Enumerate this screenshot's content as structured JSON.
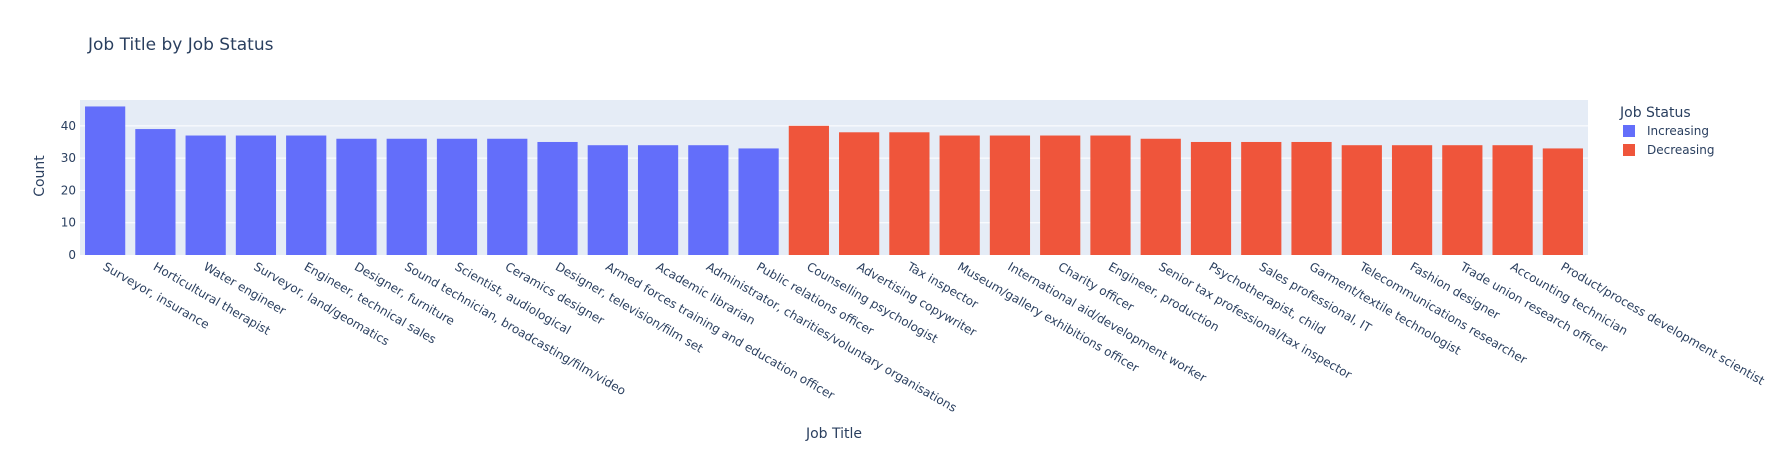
{
  "chart_data": {
    "type": "bar",
    "title": "Job Title by Job Status",
    "xlabel": "Job Title",
    "ylabel": "Count",
    "ylim": [
      0,
      48
    ],
    "yticks": [
      0,
      10,
      20,
      30,
      40
    ],
    "grid": true,
    "legend": {
      "title": "Job Status",
      "position": "top-right",
      "items": [
        {
          "name": "Increasing",
          "color": "#636efa"
        },
        {
          "name": "Decreasing",
          "color": "#ef553b"
        }
      ]
    },
    "series": [
      {
        "name": "Increasing",
        "color": "#636efa",
        "categories": [
          "Surveyor, insurance",
          "Horticultural therapist",
          "Water engineer",
          "Surveyor, land/geomatics",
          "Engineer, technical sales",
          "Designer, furniture",
          "Sound technician, broadcasting/film/video",
          "Scientist, audiological",
          "Ceramics designer",
          "Designer, television/film set",
          "Armed forces training and education officer",
          "Academic librarian",
          "Administrator, charities/voluntary organisations",
          "Public relations officer"
        ],
        "values": [
          46,
          39,
          37,
          37,
          37,
          36,
          36,
          36,
          36,
          35,
          34,
          34,
          34,
          33
        ]
      },
      {
        "name": "Decreasing",
        "color": "#ef553b",
        "categories": [
          "Counselling psychologist",
          "Advertising copywriter",
          "Tax inspector",
          "Museum/gallery exhibitions officer",
          "International aid/development worker",
          "Charity officer",
          "Engineer, production",
          "Senior tax professional/tax inspector",
          "Psychotherapist, child",
          "Sales professional, IT",
          "Garment/textile technologist",
          "Telecommunications researcher",
          "Fashion designer",
          "Trade union research officer",
          "Accounting technician",
          "Product/process development scientist"
        ],
        "values": [
          40,
          38,
          38,
          37,
          37,
          37,
          37,
          36,
          35,
          35,
          35,
          34,
          34,
          34,
          34,
          33
        ]
      }
    ]
  }
}
